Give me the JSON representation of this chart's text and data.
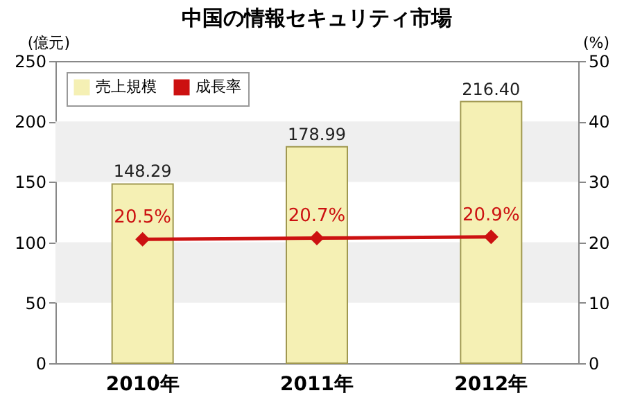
{
  "chart_data": {
    "type": "bar",
    "title": "中国の情報セキュリティ市場",
    "ylabel": "(億元)",
    "y2label": "(%)",
    "categories": [
      "2010年",
      "2011年",
      "2012年"
    ],
    "series": [
      {
        "name": "売上規模",
        "color": "#f5f0b4",
        "values": [
          148.29,
          178.99,
          216.4
        ],
        "value_labels": [
          "148.29",
          "178.99",
          "216.40"
        ]
      },
      {
        "name": "成長率",
        "type": "line",
        "axis": "y2",
        "color": "#cc1111",
        "values": [
          20.5,
          20.7,
          20.9
        ],
        "value_labels": [
          "20.5%",
          "20.7%",
          "20.9%"
        ]
      }
    ],
    "ylim": [
      0,
      250
    ],
    "yticks": [
      0,
      50,
      100,
      150,
      200,
      250
    ],
    "y2lim": [
      0,
      50
    ],
    "y2ticks": [
      0,
      10,
      20,
      30,
      40,
      50
    ],
    "bands": [
      {
        "axis": "y",
        "from": 50,
        "to": 100,
        "color": "#efefef"
      },
      {
        "axis": "y",
        "from": 150,
        "to": 200,
        "color": "#efefef"
      }
    ],
    "legend": "top left",
    "marker": "diamond",
    "line_style": "solid"
  }
}
